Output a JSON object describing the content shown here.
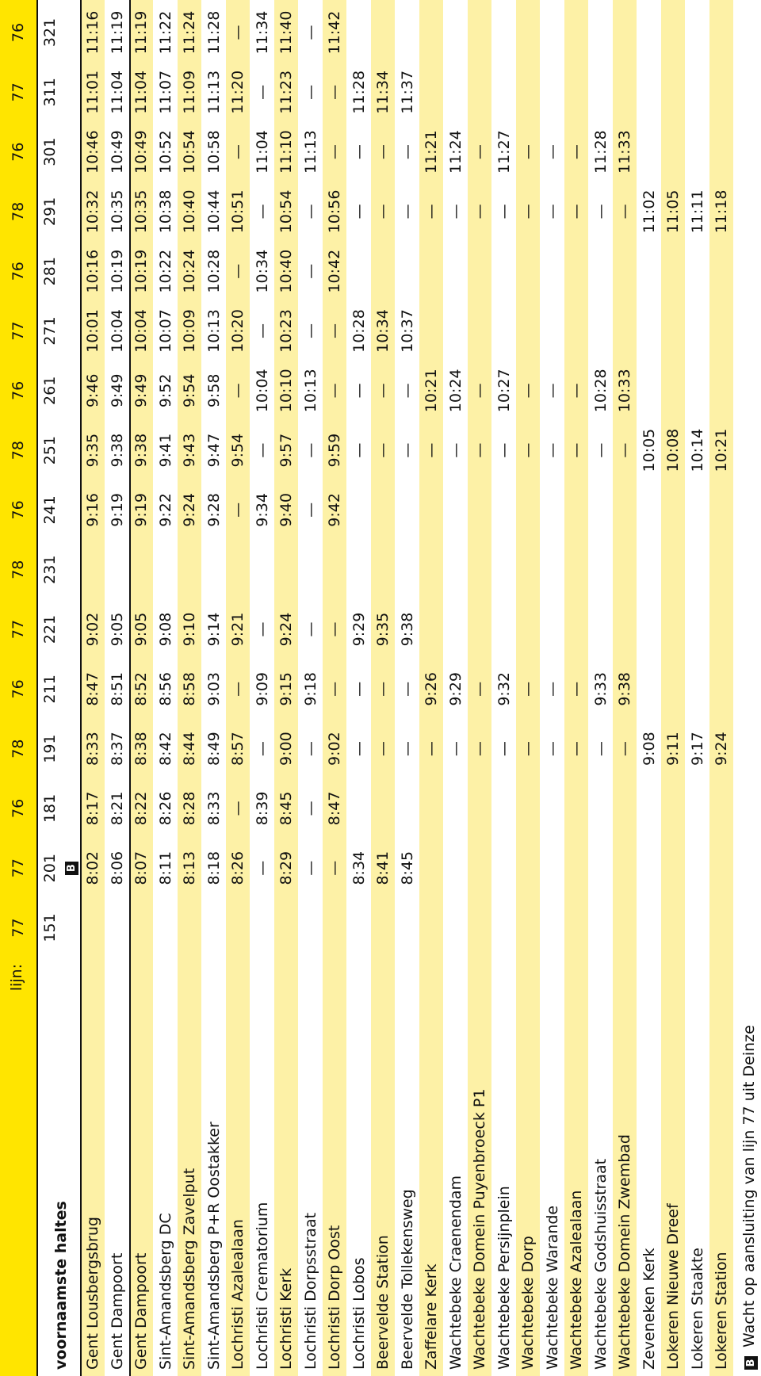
{
  "header": {
    "stops_label": "voornaamste haltes",
    "line_label": "lijn:"
  },
  "stops": [
    "Gent Lousbergsbrug",
    "Gent Dampoort",
    "Gent Dampoort",
    "Sint-Amandsberg DC",
    "Sint-Amandsberg Zavelput",
    "Sint-Amandsberg P+R Oostakker",
    "Lochristi Azalealaan",
    "Lochristi Crematorium",
    "Lochristi Kerk",
    "Lochristi Dorpsstraat",
    "Lochristi Dorp Oost",
    "Lochristi Lobos",
    "Beervelde Station",
    "Beervelde Tollekensweg",
    "Zaffelare Kerk",
    "Wachtebeke Craenendam",
    "Wachtebeke Domein Puyenbroeck P1",
    "Wachtebeke Persijnplein",
    "Wachtebeke Dorp",
    "Wachtebeke Warande",
    "Wachtebeke Azalealaan",
    "Wachtebeke Godshuisstraat",
    "Wachtebeke Domein Zwembad",
    "Zeveneken Kerk",
    "Lokeren Nieuwe Dreef",
    "Lokeren Staakte",
    "Lokeren Station"
  ],
  "trips": [
    {
      "line": "77",
      "number": "151"
    },
    {
      "line": "77",
      "number": "201",
      "note": "B",
      "times": [
        "8:02",
        "8:06",
        "8:07",
        "8:11",
        "8:13",
        "8:18",
        "8:26",
        "—",
        "8:29",
        "—",
        "—",
        "8:34",
        "8:41",
        "8:45",
        null,
        null,
        null,
        null,
        null,
        null,
        null,
        null,
        null,
        null,
        null,
        null,
        null
      ]
    },
    {
      "line": "76",
      "number": "181",
      "times": [
        "8:17",
        "8:21",
        "8:22",
        "8:26",
        "8:28",
        "8:33",
        "—",
        "8:39",
        "8:45",
        "—",
        "8:47",
        null,
        null,
        null,
        null,
        null,
        null,
        null,
        null,
        null,
        null,
        null,
        null,
        null,
        null,
        null,
        null
      ]
    },
    {
      "line": "78",
      "number": "191",
      "times": [
        "8:33",
        "8:37",
        "8:38",
        "8:42",
        "8:44",
        "8:49",
        "8:57",
        "—",
        "9:00",
        "—",
        "9:02",
        "—",
        "—",
        "—",
        "—",
        "—",
        "—",
        "—",
        "—",
        "—",
        "—",
        "—",
        "—",
        "9:08",
        "9:11",
        "9:17",
        "9:24"
      ]
    },
    {
      "line": "76",
      "number": "211",
      "times": [
        "8:47",
        "8:51",
        "8:52",
        "8:56",
        "8:58",
        "9:03",
        "—",
        "9:09",
        "9:15",
        "9:18",
        "—",
        "—",
        "—",
        "—",
        "9:26",
        "9:29",
        "—",
        "9:32",
        "—",
        "—",
        "—",
        "9:33",
        "9:38",
        null,
        null,
        null,
        null
      ]
    },
    {
      "line": "77",
      "number": "221",
      "times": [
        "9:02",
        "9:05",
        "9:05",
        "9:08",
        "9:10",
        "9:14",
        "9:21",
        "—",
        "9:24",
        "—",
        "—",
        "9:29",
        "9:35",
        "9:38",
        null,
        null,
        null,
        null,
        null,
        null,
        null,
        null,
        null,
        null,
        null,
        null,
        null
      ]
    },
    {
      "line": "78",
      "number": "231"
    },
    {
      "line": "76",
      "number": "241",
      "times": [
        "9:16",
        "9:19",
        "9:19",
        "9:22",
        "9:24",
        "9:28",
        "—",
        "9:34",
        "9:40",
        "—",
        "9:42",
        null,
        null,
        null,
        null,
        null,
        null,
        null,
        null,
        null,
        null,
        null,
        null,
        null,
        null,
        null,
        null
      ]
    },
    {
      "line": "78",
      "number": "251",
      "times": [
        "9:35",
        "9:38",
        "9:38",
        "9:41",
        "9:43",
        "9:47",
        "9:54",
        "—",
        "9:57",
        "—",
        "9:59",
        "—",
        "—",
        "—",
        "—",
        "—",
        "—",
        "—",
        "—",
        "—",
        "—",
        "—",
        "—",
        "10:05",
        "10:08",
        "10:14",
        "10:21"
      ]
    },
    {
      "line": "76",
      "number": "261",
      "times": [
        "9:46",
        "9:49",
        "9:49",
        "9:52",
        "9:54",
        "9:58",
        "—",
        "10:04",
        "10:10",
        "10:13",
        "—",
        "—",
        "—",
        "—",
        "10:21",
        "10:24",
        "—",
        "10:27",
        "—",
        "—",
        "—",
        "10:28",
        "10:33",
        null,
        null,
        null,
        null
      ]
    },
    {
      "line": "77",
      "number": "271",
      "times": [
        "10:01",
        "10:04",
        "10:04",
        "10:07",
        "10:09",
        "10:13",
        "10:20",
        "—",
        "10:23",
        "—",
        "—",
        "10:28",
        "10:34",
        "10:37",
        null,
        null,
        null,
        null,
        null,
        null,
        null,
        null,
        null,
        null,
        null,
        null,
        null
      ]
    },
    {
      "line": "76",
      "number": "281",
      "times": [
        "10:16",
        "10:19",
        "10:19",
        "10:22",
        "10:24",
        "10:28",
        "—",
        "10:34",
        "10:40",
        "—",
        "10:42",
        null,
        null,
        null,
        null,
        null,
        null,
        null,
        null,
        null,
        null,
        null,
        null,
        null,
        null,
        null,
        null
      ]
    },
    {
      "line": "78",
      "number": "291",
      "times": [
        "10:32",
        "10:35",
        "10:35",
        "10:38",
        "10:40",
        "10:44",
        "10:51",
        "—",
        "10:54",
        "—",
        "10:56",
        "—",
        "—",
        "—",
        "—",
        "—",
        "—",
        "—",
        "—",
        "—",
        "—",
        "—",
        "—",
        "11:02",
        "11:05",
        "11:11",
        "11:18"
      ]
    },
    {
      "line": "76",
      "number": "301",
      "times": [
        "10:46",
        "10:49",
        "10:49",
        "10:52",
        "10:54",
        "10:58",
        "—",
        "11:04",
        "11:10",
        "11:13",
        "—",
        "—",
        "—",
        "—",
        "11:21",
        "11:24",
        "—",
        "11:27",
        "—",
        "—",
        "—",
        "11:28",
        "11:33",
        null,
        null,
        null,
        null
      ]
    },
    {
      "line": "77",
      "number": "311",
      "times": [
        "11:01",
        "11:04",
        "11:04",
        "11:07",
        "11:09",
        "11:13",
        "11:20",
        "—",
        "11:23",
        "—",
        "—",
        "11:28",
        "11:34",
        "11:37",
        null,
        null,
        null,
        null,
        null,
        null,
        null,
        null,
        null,
        null,
        null,
        null,
        null
      ]
    },
    {
      "line": "76",
      "number": "321",
      "times": [
        "11:16",
        "11:19",
        "11:19",
        "11:22",
        "11:24",
        "11:28",
        "—",
        "11:34",
        "11:40",
        "—",
        "11:42",
        null,
        null,
        null,
        null,
        null,
        null,
        null,
        null,
        null,
        null,
        null,
        null,
        null,
        null,
        null,
        null
      ]
    }
  ],
  "footnote": {
    "marker": "B",
    "text": "Wacht op aansluiting van lijn 77 uit Deinze"
  }
}
